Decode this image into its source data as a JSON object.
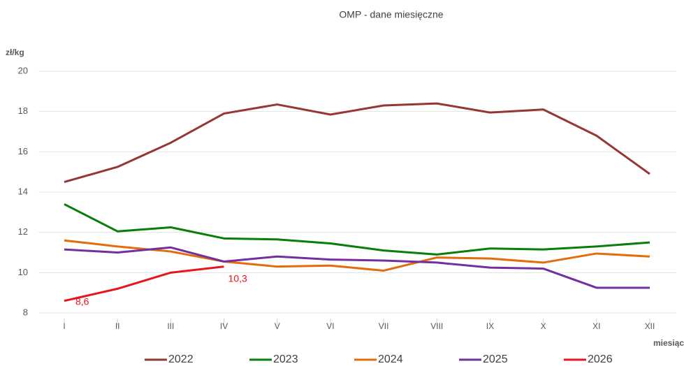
{
  "chart_data": {
    "type": "line",
    "title": "OMP - dane miesięczne",
    "ylabel": "zł/kg",
    "xlabel": "miesiąc",
    "categories": [
      "I",
      "II",
      "III",
      "IV",
      "V",
      "VI",
      "VII",
      "VIII",
      "IX",
      "X",
      "XI",
      "XII"
    ],
    "series": [
      {
        "name": "2022",
        "color": "#953735",
        "values": [
          14.5,
          15.25,
          16.45,
          17.9,
          18.35,
          17.85,
          18.3,
          18.4,
          17.95,
          18.1,
          16.8,
          14.9
        ]
      },
      {
        "name": "2023",
        "color": "#0a7d0a",
        "values": [
          13.4,
          12.05,
          12.25,
          11.7,
          11.65,
          11.45,
          11.1,
          10.9,
          11.2,
          11.15,
          11.3,
          11.5
        ]
      },
      {
        "name": "2024",
        "color": "#e46c0a",
        "values": [
          11.6,
          11.3,
          11.05,
          10.55,
          10.3,
          10.35,
          10.1,
          10.75,
          10.7,
          10.5,
          10.95,
          10.8
        ]
      },
      {
        "name": "2025",
        "color": "#7030a0",
        "values": [
          11.15,
          11.0,
          11.25,
          10.55,
          10.8,
          10.65,
          10.6,
          10.5,
          10.25,
          10.2,
          9.25,
          9.25
        ]
      },
      {
        "name": "2026",
        "color": "#e8141b",
        "values": [
          8.6,
          9.2,
          10.0,
          10.3,
          null,
          null,
          null,
          null,
          null,
          null,
          null,
          null
        ],
        "value_labels": [
          "8,6",
          null,
          null,
          "10,3",
          null,
          null,
          null,
          null,
          null,
          null,
          null,
          null
        ]
      }
    ],
    "ylim": [
      8,
      20
    ],
    "yticks": [
      8,
      10,
      12,
      14,
      16,
      18,
      20
    ],
    "grid": true,
    "legend": "bottom"
  }
}
